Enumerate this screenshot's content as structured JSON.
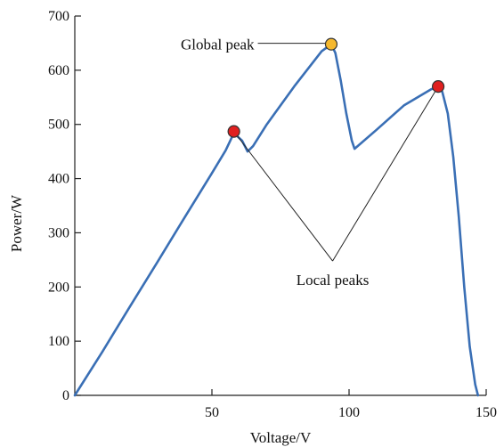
{
  "chart_data": {
    "type": "line",
    "title": "",
    "xlabel": "Voltage/V",
    "ylabel": "Power/W",
    "xlim": [
      0,
      150
    ],
    "ylim": [
      0,
      700
    ],
    "xticks": [
      50,
      100,
      150
    ],
    "yticks": [
      0,
      100,
      200,
      300,
      400,
      500,
      600,
      700
    ],
    "grid": false,
    "series": [
      {
        "color": "#3a6fb5",
        "x": [
          0,
          10,
          20,
          30,
          40,
          50,
          55,
          58,
          61,
          63,
          65,
          70,
          80,
          90,
          93.5,
          95,
          97,
          99,
          101,
          102,
          110,
          120,
          130,
          132.5,
          134,
          136,
          138,
          140,
          142,
          144,
          146,
          147
        ],
        "y": [
          0,
          80,
          163,
          245,
          328,
          410,
          452,
          484,
          470,
          450,
          460,
          500,
          570,
          635,
          648,
          632,
          580,
          520,
          470,
          455,
          490,
          535,
          565,
          570,
          560,
          520,
          440,
          330,
          200,
          90,
          20,
          0
        ]
      }
    ],
    "markers": [
      {
        "x": 58,
        "y": 487,
        "color": "#e02020"
      },
      {
        "x": 93.5,
        "y": 648,
        "color": "#f5b82e"
      },
      {
        "x": 132.5,
        "y": 570,
        "color": "#e02020"
      }
    ],
    "annotations": [
      {
        "text": "Global peak",
        "x": 57,
        "y": 648,
        "anchor": "end",
        "line_to": [
          93.5,
          648
        ]
      },
      {
        "text": "Local peaks",
        "x": 94,
        "y": 220,
        "anchor": "middle",
        "tip": [
          94,
          248
        ],
        "lines_to": [
          [
            58,
            487
          ],
          [
            132.5,
            570
          ]
        ]
      }
    ]
  }
}
